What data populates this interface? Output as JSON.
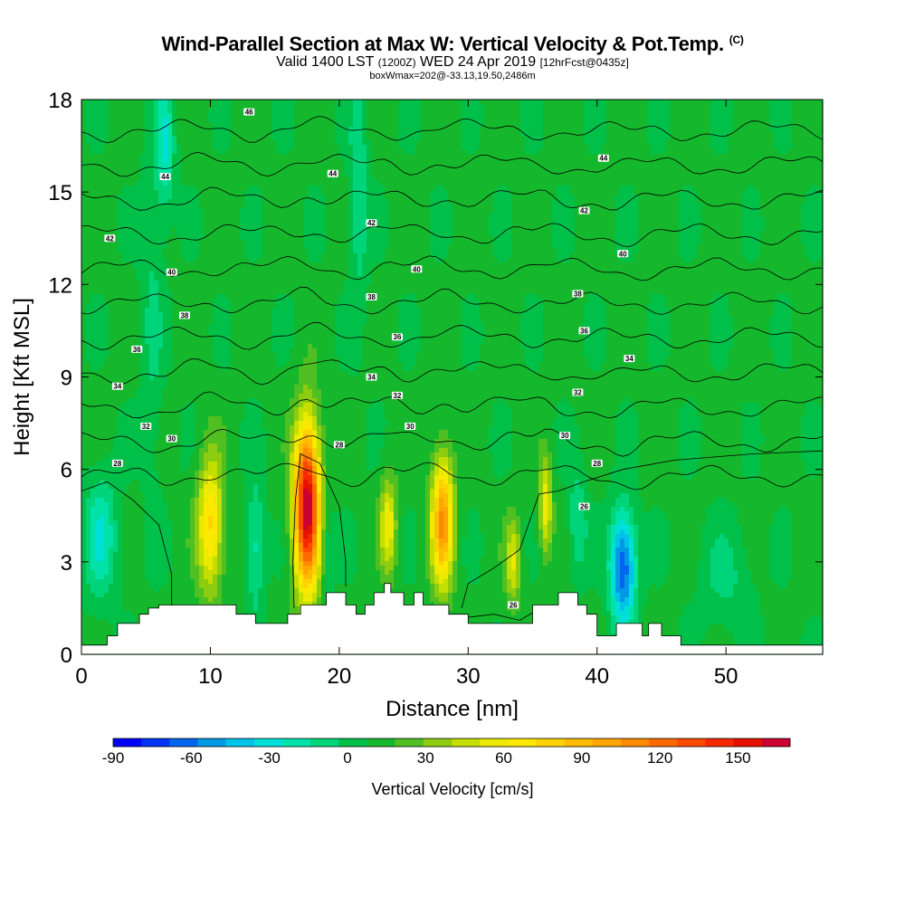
{
  "header": {
    "title": "Wind-Parallel Section at Max W: Vertical Velocity & Pot.Temp.",
    "copyright": "(C)",
    "valid_prefix": "Valid 1400 LST",
    "valid_utc": "(1200Z)",
    "valid_date": "WED 24 Apr 2019",
    "forecast": "[12hrFcst@0435z]",
    "box_info": "boxWmax=202@-33.13,19.50,2486m"
  },
  "colorbar": {
    "label": "Vertical Velocity [cm/s]",
    "tick_labels": [
      "-90",
      "-60",
      "-30",
      "0",
      "30",
      "60",
      "90",
      "120",
      "150"
    ],
    "tick_values": [
      -90,
      -60,
      -30,
      0,
      30,
      60,
      90,
      120,
      150
    ],
    "range": [
      -90,
      170
    ],
    "colors": [
      "#0000ff",
      "#0033f5",
      "#0066ee",
      "#0099e6",
      "#00c3e8",
      "#00e0d8",
      "#00e2a8",
      "#00d47a",
      "#00c04a",
      "#15b82c",
      "#50bf22",
      "#8dcc10",
      "#c4de00",
      "#ecea00",
      "#fde800",
      "#fed200",
      "#ffbc00",
      "#ffa500",
      "#ff8a00",
      "#ff6a00",
      "#ff4a00",
      "#f52800",
      "#e51000",
      "#cc0033"
    ]
  },
  "chart_data": {
    "type": "heatmap",
    "title": "Wind-Parallel Section at Max W: Vertical Velocity & Pot.Temp.",
    "xlabel": "Distance [nm]",
    "ylabel": "Height [Kft MSL]",
    "xlim": [
      0,
      57.5
    ],
    "ylim": [
      0,
      18
    ],
    "x_ticks": [
      0,
      10,
      20,
      30,
      40,
      50
    ],
    "x_tick_labels": [
      "0",
      "10",
      "20",
      "30",
      "40",
      "50"
    ],
    "y_ticks": [
      0,
      3,
      6,
      9,
      12,
      15,
      18
    ],
    "y_tick_labels": [
      "0",
      "3",
      "6",
      "9",
      "12",
      "15",
      "18"
    ],
    "background_value": 10,
    "vertical_velocity_features": [
      {
        "x": 1.5,
        "y": 3.8,
        "sx": 0.9,
        "sy": 1.4,
        "w": -35
      },
      {
        "x": 5.5,
        "y": 11.0,
        "sx": 0.6,
        "sy": 4.0,
        "w": -15
      },
      {
        "x": 6.5,
        "y": 16.5,
        "sx": 0.5,
        "sy": 1.5,
        "w": -35
      },
      {
        "x": 10.0,
        "y": 4.2,
        "sx": 0.7,
        "sy": 1.6,
        "w": 65
      },
      {
        "x": 13.5,
        "y": 3.5,
        "sx": 0.5,
        "sy": 1.5,
        "w": -30
      },
      {
        "x": 17.5,
        "y": 4.8,
        "sx": 0.7,
        "sy": 1.9,
        "w": 160
      },
      {
        "x": 19.0,
        "y": 3.5,
        "sx": 0.4,
        "sy": 1.2,
        "w": -15
      },
      {
        "x": 21.5,
        "y": 15.0,
        "sx": 0.5,
        "sy": 2.5,
        "w": -25
      },
      {
        "x": 23.8,
        "y": 4.2,
        "sx": 0.45,
        "sy": 1.1,
        "w": 50
      },
      {
        "x": 28.0,
        "y": 4.3,
        "sx": 0.6,
        "sy": 1.5,
        "w": 95
      },
      {
        "x": 33.5,
        "y": 3.0,
        "sx": 0.45,
        "sy": 1.0,
        "w": 40
      },
      {
        "x": 36.0,
        "y": 4.8,
        "sx": 0.35,
        "sy": 1.1,
        "w": 50
      },
      {
        "x": 38.5,
        "y": 4.3,
        "sx": 0.5,
        "sy": 1.2,
        "w": -25
      },
      {
        "x": 42.0,
        "y": 2.8,
        "sx": 0.7,
        "sy": 1.3,
        "w": -80
      },
      {
        "x": 50.0,
        "y": 2.5,
        "sx": 1.5,
        "sy": 1.2,
        "w": -15
      }
    ],
    "potential_temperature_labels": [
      {
        "x": 13,
        "y": 17.6,
        "text": "46"
      },
      {
        "x": 6.5,
        "y": 15.5,
        "text": "44"
      },
      {
        "x": 19.5,
        "y": 15.6,
        "text": "44"
      },
      {
        "x": 40.5,
        "y": 16.1,
        "text": "44"
      },
      {
        "x": 2.2,
        "y": 13.5,
        "text": "42"
      },
      {
        "x": 22.5,
        "y": 14.0,
        "text": "42"
      },
      {
        "x": 39.0,
        "y": 14.4,
        "text": "42"
      },
      {
        "x": 7.0,
        "y": 12.4,
        "text": "40"
      },
      {
        "x": 26.0,
        "y": 12.5,
        "text": "40"
      },
      {
        "x": 42.0,
        "y": 13.0,
        "text": "40"
      },
      {
        "x": 8.0,
        "y": 11.0,
        "text": "38"
      },
      {
        "x": 22.5,
        "y": 11.6,
        "text": "38"
      },
      {
        "x": 38.5,
        "y": 11.7,
        "text": "38"
      },
      {
        "x": 4.3,
        "y": 9.9,
        "text": "36"
      },
      {
        "x": 24.5,
        "y": 10.3,
        "text": "36"
      },
      {
        "x": 39.0,
        "y": 10.5,
        "text": "36"
      },
      {
        "x": 2.8,
        "y": 8.7,
        "text": "34"
      },
      {
        "x": 22.5,
        "y": 9.0,
        "text": "34"
      },
      {
        "x": 42.5,
        "y": 9.6,
        "text": "34"
      },
      {
        "x": 5.0,
        "y": 7.4,
        "text": "32"
      },
      {
        "x": 24.5,
        "y": 8.4,
        "text": "32"
      },
      {
        "x": 38.5,
        "y": 8.5,
        "text": "32"
      },
      {
        "x": 7.0,
        "y": 7.0,
        "text": "30"
      },
      {
        "x": 25.5,
        "y": 7.4,
        "text": "30"
      },
      {
        "x": 37.5,
        "y": 7.1,
        "text": "30"
      },
      {
        "x": 2.8,
        "y": 6.2,
        "text": "28"
      },
      {
        "x": 20.0,
        "y": 6.8,
        "text": "28"
      },
      {
        "x": 40.0,
        "y": 6.2,
        "text": "28"
      },
      {
        "x": 39.0,
        "y": 4.8,
        "text": "26"
      },
      {
        "x": 33.5,
        "y": 1.6,
        "text": "26"
      }
    ],
    "potential_temperature_levels": [
      28,
      30,
      32,
      34,
      36,
      38,
      40,
      42,
      44,
      46,
      48
    ],
    "terrain_kft": {
      "x": [
        0,
        2,
        2,
        2.8,
        2.8,
        4.5,
        4.5,
        5.2,
        5.2,
        6,
        6,
        12,
        12,
        13.5,
        13.5,
        16,
        16,
        17,
        17,
        19,
        19,
        20.5,
        20.5,
        21.3,
        21.3,
        22,
        22,
        22.7,
        22.7,
        23.5,
        23.5,
        24,
        24,
        25,
        25,
        25.8,
        25.8,
        26.5,
        26.5,
        28.5,
        28.5,
        30,
        30,
        35,
        35,
        37,
        37,
        38.5,
        38.5,
        39.2,
        39.2,
        40,
        40,
        41.5,
        41.5,
        43.5,
        43.5,
        44,
        44,
        45,
        45,
        46.5,
        46.5,
        57.5
      ],
      "y": [
        0.3,
        0.3,
        0.6,
        0.6,
        1.0,
        1.0,
        1.3,
        1.3,
        1.5,
        1.5,
        1.6,
        1.6,
        1.3,
        1.3,
        1.0,
        1.0,
        1.3,
        1.3,
        1.6,
        1.6,
        2.0,
        2.0,
        1.6,
        1.6,
        1.3,
        1.3,
        1.6,
        1.6,
        2.0,
        2.0,
        2.3,
        2.3,
        2.0,
        2.0,
        1.6,
        1.6,
        2.0,
        2.0,
        1.6,
        1.6,
        1.3,
        1.3,
        1.0,
        1.0,
        1.6,
        1.6,
        2.0,
        2.0,
        1.6,
        1.6,
        1.3,
        1.3,
        0.6,
        0.6,
        1.0,
        1.0,
        0.6,
        0.6,
        1.0,
        1.0,
        0.6,
        0.6,
        0.3,
        0.3
      ]
    },
    "colors": {
      "terrain": "#ffffff",
      "contour": "#000000"
    }
  }
}
